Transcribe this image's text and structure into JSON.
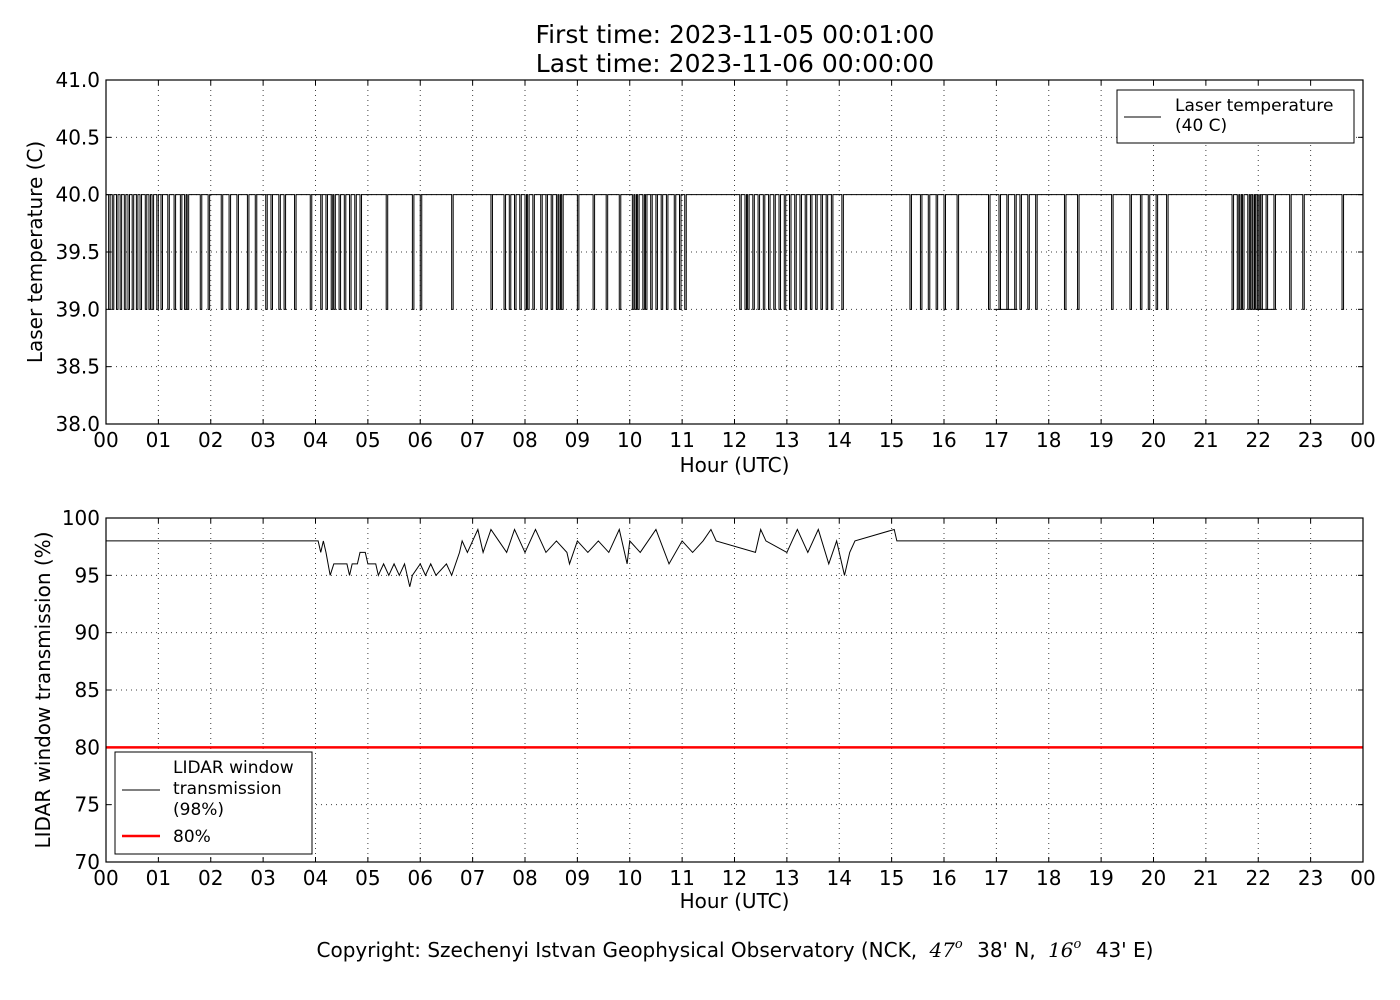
{
  "header": {
    "first_time": "First time: 2023-11-05 00:01:00",
    "last_time": "Last time: 2023-11-06 00:00:00"
  },
  "copyright": {
    "prefix": "Copyright: Szechenyi Istvan Geophysical Observatory (NCK,",
    "lat_deg": "47",
    "lat_min": "38' N,",
    "lon_deg": "16",
    "lon_min": "43' E)",
    "degree_symbol": "o"
  },
  "colors": {
    "line": "#000000",
    "threshold": "#ff0000",
    "grid": "#000000"
  },
  "chart_data": [
    {
      "type": "line",
      "xlabel": "Hour (UTC)",
      "ylabel": "Laser temperature (C)",
      "xlim": [
        0,
        24
      ],
      "ylim": [
        38.0,
        41.0
      ],
      "xticks": [
        "00",
        "01",
        "02",
        "03",
        "04",
        "05",
        "06",
        "07",
        "08",
        "09",
        "10",
        "11",
        "12",
        "13",
        "14",
        "15",
        "16",
        "17",
        "18",
        "19",
        "20",
        "21",
        "22",
        "23",
        "00"
      ],
      "yticks": [
        "38.0",
        "38.5",
        "39.0",
        "39.5",
        "40.0",
        "40.5",
        "41.0"
      ],
      "grid": true,
      "legend_position": "upper right",
      "series": [
        {
          "name": "Laser temperature\n(40 C)",
          "color": "#000000",
          "baseline": 40.0,
          "dip_value": 39.0,
          "dips_to_39_at_hours": [
            0.05,
            0.12,
            0.2,
            0.27,
            0.35,
            0.42,
            0.5,
            0.58,
            0.65,
            0.75,
            0.82,
            0.88,
            0.97,
            1.05,
            1.18,
            1.3,
            1.42,
            1.5,
            1.55,
            1.8,
            1.95,
            2.2,
            2.35,
            2.5,
            2.7,
            2.85,
            3.05,
            3.15,
            3.3,
            3.4,
            3.6,
            3.9,
            4.1,
            4.2,
            4.3,
            4.35,
            4.45,
            4.55,
            4.65,
            4.75,
            4.85,
            5.35,
            5.85,
            6.0,
            6.6,
            7.35,
            7.6,
            7.7,
            7.8,
            7.9,
            8.0,
            8.05,
            8.15,
            8.3,
            8.4,
            8.5,
            8.6,
            8.65,
            8.7,
            9.0,
            9.3,
            9.55,
            9.8,
            10.05,
            10.1,
            10.15,
            10.25,
            10.3,
            10.4,
            10.5,
            10.6,
            10.7,
            10.85,
            10.95,
            11.05,
            12.1,
            12.2,
            12.25,
            12.35,
            12.45,
            12.55,
            12.65,
            12.75,
            12.85,
            12.95,
            13.05,
            13.15,
            13.25,
            13.35,
            13.45,
            13.55,
            13.65,
            13.75,
            13.85,
            14.05,
            15.35,
            15.55,
            15.7,
            15.85,
            16.0,
            16.25,
            16.85,
            17.05,
            17.2,
            17.35,
            17.45,
            17.6,
            17.75,
            18.3,
            18.55,
            19.2,
            19.55,
            19.75,
            19.9,
            20.05,
            20.25,
            21.5,
            21.6,
            21.65,
            21.7,
            21.8,
            21.85,
            21.9,
            21.95,
            22.0,
            22.05,
            22.15,
            22.3,
            22.6,
            22.85,
            23.6
          ],
          "dips_to_39_at_hours_note": "",
          "sustained_39_ranges_hours": [
            [
              16.95,
              17.4
            ],
            [
              21.95,
              22.3
            ]
          ]
        }
      ]
    },
    {
      "type": "line",
      "xlabel": "Hour (UTC)",
      "ylabel": "LIDAR window transmission (%)",
      "xlim": [
        0,
        24
      ],
      "ylim": [
        70,
        100
      ],
      "xticks": [
        "00",
        "01",
        "02",
        "03",
        "04",
        "05",
        "06",
        "07",
        "08",
        "09",
        "10",
        "11",
        "12",
        "13",
        "14",
        "15",
        "16",
        "17",
        "18",
        "19",
        "20",
        "21",
        "22",
        "23",
        "00"
      ],
      "yticks": [
        "70",
        "75",
        "80",
        "85",
        "90",
        "95",
        "100"
      ],
      "grid": true,
      "legend_position": "lower left",
      "series": [
        {
          "name": "LIDAR window\ntransmission\n(98%)",
          "color": "#000000",
          "points_hours_percent": [
            [
              0,
              98
            ],
            [
              4.05,
              98
            ],
            [
              4.1,
              97
            ],
            [
              4.15,
              98
            ],
            [
              4.2,
              97
            ],
            [
              4.28,
              95
            ],
            [
              4.35,
              96
            ],
            [
              4.6,
              96
            ],
            [
              4.65,
              95
            ],
            [
              4.7,
              96
            ],
            [
              4.8,
              96
            ],
            [
              4.85,
              97
            ],
            [
              4.95,
              97
            ],
            [
              5.0,
              96
            ],
            [
              5.15,
              96
            ],
            [
              5.2,
              95
            ],
            [
              5.3,
              96
            ],
            [
              5.4,
              95
            ],
            [
              5.5,
              96
            ],
            [
              5.6,
              95
            ],
            [
              5.7,
              96
            ],
            [
              5.8,
              94
            ],
            [
              5.85,
              95
            ],
            [
              6.0,
              96
            ],
            [
              6.1,
              95
            ],
            [
              6.2,
              96
            ],
            [
              6.3,
              95
            ],
            [
              6.5,
              96
            ],
            [
              6.6,
              95
            ],
            [
              6.75,
              97
            ],
            [
              6.8,
              98
            ],
            [
              6.9,
              97
            ],
            [
              7.0,
              98
            ],
            [
              7.1,
              99
            ],
            [
              7.2,
              97
            ],
            [
              7.35,
              99
            ],
            [
              7.5,
              98
            ],
            [
              7.65,
              97
            ],
            [
              7.8,
              99
            ],
            [
              8.0,
              97
            ],
            [
              8.2,
              99
            ],
            [
              8.4,
              97
            ],
            [
              8.6,
              98
            ],
            [
              8.8,
              97
            ],
            [
              8.85,
              96
            ],
            [
              9.0,
              98
            ],
            [
              9.2,
              97
            ],
            [
              9.4,
              98
            ],
            [
              9.6,
              97
            ],
            [
              9.8,
              99
            ],
            [
              9.95,
              96
            ],
            [
              10.0,
              98
            ],
            [
              10.2,
              97
            ],
            [
              10.5,
              99
            ],
            [
              10.75,
              96
            ],
            [
              11.0,
              98
            ],
            [
              11.2,
              97
            ],
            [
              11.4,
              98
            ],
            [
              11.55,
              99
            ],
            [
              11.65,
              98
            ],
            [
              12.4,
              97
            ],
            [
              12.5,
              99
            ],
            [
              12.6,
              98
            ],
            [
              13.0,
              97
            ],
            [
              13.2,
              99
            ],
            [
              13.4,
              97
            ],
            [
              13.6,
              99
            ],
            [
              13.8,
              96
            ],
            [
              13.95,
              98
            ],
            [
              14.1,
              95
            ],
            [
              14.2,
              97
            ],
            [
              14.3,
              98
            ],
            [
              15.05,
              99
            ],
            [
              15.1,
              98
            ],
            [
              24.0,
              98
            ]
          ]
        },
        {
          "name": "80%",
          "color": "#ff0000",
          "constant": 80
        }
      ]
    }
  ]
}
